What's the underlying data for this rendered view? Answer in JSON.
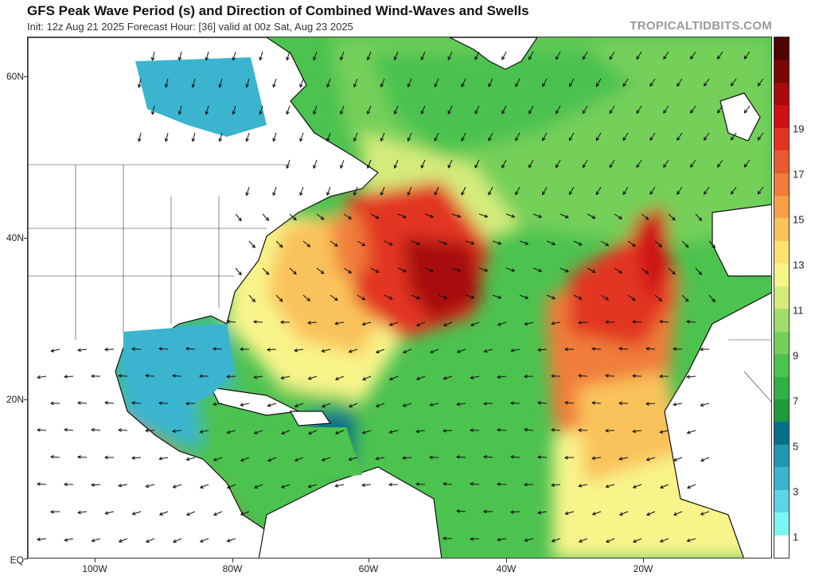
{
  "header": {
    "title": "GFS Peak Wave Period (s) and Direction of Combined Wind-Waves and Swells",
    "subtitle": "Init: 12z Aug 21 2025   Forecast Hour: [36]   valid at 00z Sat, Aug 23 2025",
    "brand": "TROPICALTIDBITS.COM"
  },
  "map": {
    "lat_labels": [
      "60N",
      "40N",
      "20N",
      "EQ"
    ],
    "lon_labels": [
      "100W",
      "80W",
      "60W",
      "40W",
      "20W"
    ]
  },
  "colorbar": {
    "labels": [
      "1",
      "3",
      "5",
      "7",
      "9",
      "11",
      "13",
      "15",
      "17",
      "19"
    ],
    "colors": [
      "#ffffff",
      "#7ef4f4",
      "#5ed4e6",
      "#3bb5cf",
      "#2596b2",
      "#0b6f8a",
      "#1e9a3a",
      "#30b045",
      "#4cc24f",
      "#75d05a",
      "#a2dc6c",
      "#d4ec7c",
      "#f8f48a",
      "#fde271",
      "#fac25a",
      "#f6a04a",
      "#f07d3a",
      "#ea5a2e",
      "#e23422",
      "#cf1016",
      "#a80b0c",
      "#7a0606",
      "#4d0303"
    ]
  }
}
